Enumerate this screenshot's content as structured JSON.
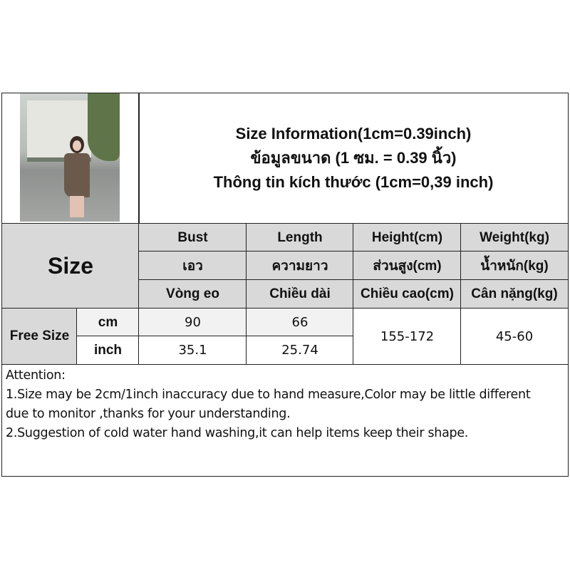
{
  "title": {
    "line1": "Size Information(1cm=0.39inch)",
    "line2": "ข้อมูลขนาด (1 ซม. = 0.39 นิ้ว)",
    "line3": "Thông tin kích thước (1cm=0,39 inch)"
  },
  "size_label": "Size",
  "columns": [
    {
      "en": "Bust",
      "th": "เอว",
      "vi": "Vòng eo"
    },
    {
      "en": "Length",
      "th": "ความยาว",
      "vi": "Chiều dài"
    },
    {
      "en": "Height(cm)",
      "th": "ส่วนสูง(cm)",
      "vi": "Chiều cao(cm)"
    },
    {
      "en": "Weight(kg)",
      "th": "น้ำหนัก(kg)",
      "vi": "Cân nặng(kg)"
    }
  ],
  "row": {
    "size": "Free Size",
    "cm_label": "cm",
    "inch_label": "inch",
    "bust_cm": "90",
    "length_cm": "66",
    "bust_inch": "35.1",
    "length_inch": "25.74",
    "height": "155-172",
    "weight": "45-60"
  },
  "colors": {
    "header_gray": "#d9d9d9",
    "light_gray": "#f2f2f2",
    "border": "#222222"
  },
  "attention": {
    "heading": "Attention:",
    "line1": "1.Size may be 2cm/1inch inaccuracy due to hand measure,Color may be little different",
    "line2": "due to monitor ,thanks for your understanding.",
    "line3": "2.Suggestion of cold water hand washing,it can help items keep their shape."
  }
}
